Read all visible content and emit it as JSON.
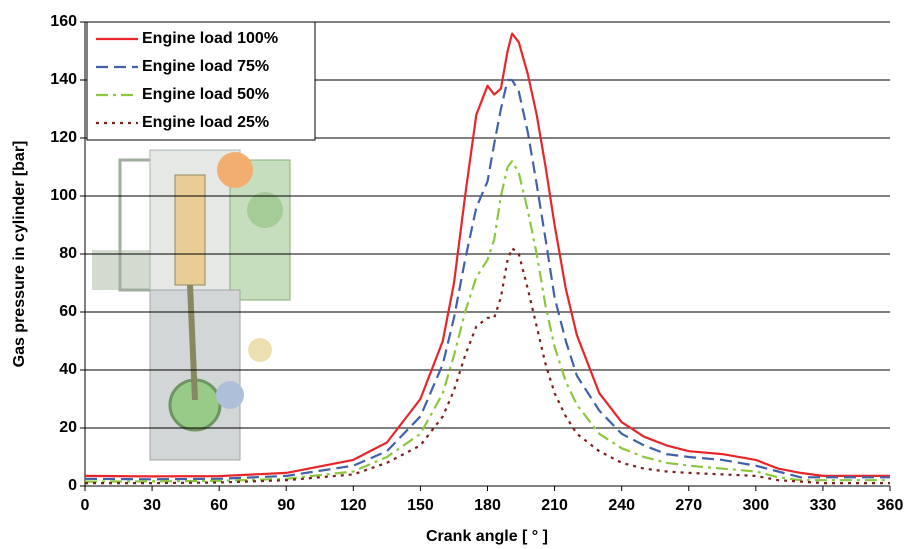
{
  "chart_data": {
    "type": "line",
    "x_label": "Crank angle [ ° ]",
    "y_label": "Gas pressure in cylinder [bar]",
    "x": [
      0,
      30,
      60,
      90,
      120,
      135,
      150,
      160,
      165,
      170,
      175,
      180,
      183,
      186,
      189,
      191,
      194,
      198,
      202,
      206,
      210,
      215,
      220,
      230,
      240,
      250,
      260,
      270,
      285,
      300,
      310,
      320,
      330,
      340,
      360
    ],
    "series": [
      {
        "name": "Engine load 100%",
        "color": "#e8262a",
        "dash": "solid",
        "values": [
          3.5,
          3.3,
          3.4,
          4.5,
          9,
          15,
          30,
          50,
          70,
          100,
          128,
          138,
          135,
          137,
          150,
          156,
          153,
          142,
          128,
          110,
          90,
          68,
          52,
          32,
          22,
          17,
          14,
          12,
          11,
          9,
          6,
          4.5,
          3.5,
          3.5,
          3.5
        ]
      },
      {
        "name": "Engine load 75%",
        "color": "#4062aa",
        "dash": "dashed",
        "values": [
          2.5,
          2.3,
          2.5,
          3.5,
          7,
          12,
          24,
          42,
          58,
          78,
          96,
          105,
          118,
          130,
          140,
          140,
          136,
          122,
          104,
          85,
          65,
          50,
          38,
          26,
          18,
          14,
          11,
          10,
          9,
          7,
          5,
          3,
          3,
          3,
          3
        ]
      },
      {
        "name": "Engine load 50%",
        "color": "#8dc63f",
        "dash": "dashdot",
        "values": [
          1.5,
          1.6,
          1.8,
          2.5,
          5,
          10,
          18,
          32,
          45,
          60,
          72,
          78,
          85,
          100,
          110,
          112,
          108,
          95,
          80,
          62,
          48,
          36,
          28,
          18,
          13,
          10,
          8,
          7,
          6,
          5,
          3,
          2,
          2,
          2,
          2
        ]
      },
      {
        "name": "Engine load 25%",
        "color": "#7b1f1f",
        "dash": "dotted",
        "values": [
          1,
          1,
          1.2,
          2,
          4,
          8,
          14,
          24,
          33,
          45,
          55,
          58,
          58,
          65,
          78,
          82,
          80,
          68,
          55,
          42,
          32,
          24,
          18,
          12,
          8,
          6,
          5,
          4.5,
          4,
          3.5,
          2,
          1.5,
          1,
          1,
          1
        ]
      }
    ],
    "xlim": [
      0,
      360
    ],
    "xticks": [
      0,
      30,
      60,
      90,
      120,
      150,
      180,
      210,
      240,
      270,
      300,
      330,
      360
    ],
    "ylim": [
      0,
      160
    ],
    "yticks": [
      0,
      20,
      40,
      60,
      80,
      100,
      120,
      140,
      160
    ],
    "grid": true,
    "legend": "upper left"
  }
}
